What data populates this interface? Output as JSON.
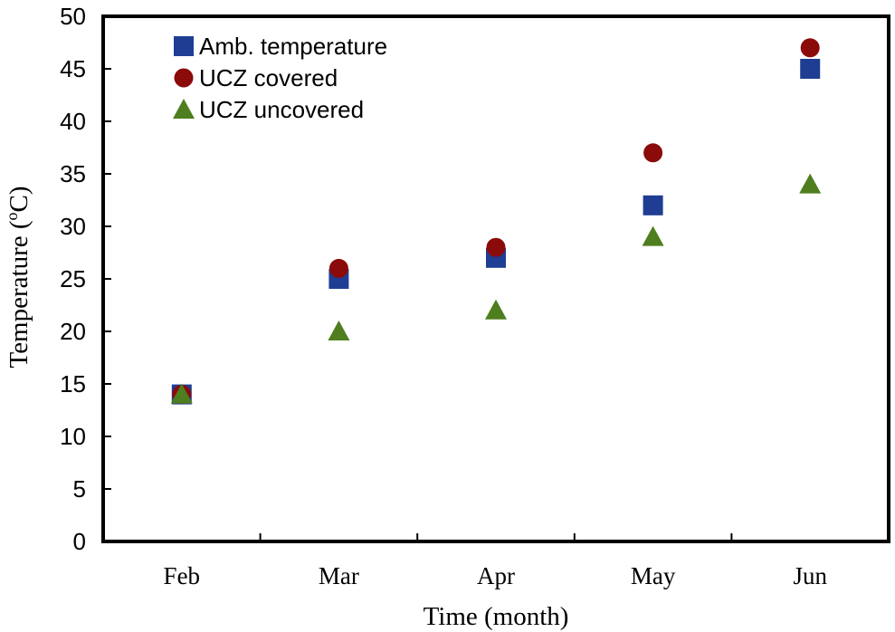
{
  "chart_data": {
    "type": "scatter",
    "title": "",
    "xlabel": "Time (month)",
    "ylabel_main": "Temperature (",
    "ylabel_sup": "o",
    "ylabel_unit": "C)",
    "categories": [
      "Feb",
      "Mar",
      "Apr",
      "May",
      "Jun"
    ],
    "ylim": [
      0,
      50
    ],
    "yticks": [
      "0",
      "5",
      "10",
      "15",
      "20",
      "25",
      "30",
      "35",
      "40",
      "45",
      "50"
    ],
    "legend_position": "top-left",
    "grid": false,
    "series": [
      {
        "name": "Amb. temperature",
        "marker": "square",
        "color": "#1F3E93",
        "values": [
          14,
          25,
          27,
          32,
          45
        ]
      },
      {
        "name": "UCZ covered",
        "marker": "circle",
        "color": "#8B0A0A",
        "values": [
          14,
          26,
          28,
          37,
          47
        ]
      },
      {
        "name": "UCZ uncovered",
        "marker": "triangle",
        "color": "#4E7E1D",
        "values": [
          14,
          20,
          22,
          29,
          34
        ]
      }
    ]
  }
}
